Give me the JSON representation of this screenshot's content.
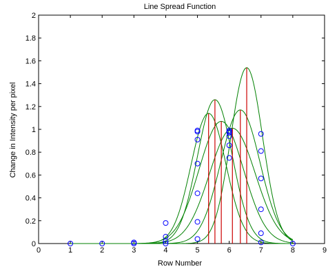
{
  "chart_data": {
    "type": "line",
    "title": "Line Spread Function",
    "xlabel": "Row Number",
    "ylabel": "Change in Intensity per pixel",
    "xlim": [
      0,
      9
    ],
    "ylim": [
      0,
      2
    ],
    "xticks": [
      "0",
      "1",
      "2",
      "3",
      "4",
      "5",
      "6",
      "7",
      "8",
      "9"
    ],
    "yticks": [
      "0",
      "0.2",
      "0.4",
      "0.6",
      "0.8",
      "1",
      "1.2",
      "1.4",
      "1.6",
      "1.8",
      "2"
    ],
    "grid": false,
    "colors": {
      "fit_curves": "#008000",
      "peak_lines": "#cc0000",
      "markers": "#0000ff"
    },
    "fits": [
      {
        "center": 5.35,
        "amplitude": 1.14,
        "sigma": 0.55
      },
      {
        "center": 5.55,
        "amplitude": 1.26,
        "sigma": 0.55
      },
      {
        "center": 5.75,
        "amplitude": 1.07,
        "sigma": 0.7
      },
      {
        "center": 6.1,
        "amplitude": 1.01,
        "sigma": 0.72
      },
      {
        "center": 6.35,
        "amplitude": 1.17,
        "sigma": 0.62
      },
      {
        "center": 6.55,
        "amplitude": 1.54,
        "sigma": 0.5
      }
    ],
    "markers": {
      "x": [
        1,
        2,
        3,
        3,
        4,
        4,
        4,
        4,
        5,
        5,
        5,
        5,
        5,
        5,
        5,
        6,
        6,
        6,
        6,
        6,
        6,
        7,
        7,
        7,
        7,
        7,
        7,
        8
      ],
      "y": [
        0,
        0,
        0,
        0.01,
        0,
        0.02,
        0.06,
        0.18,
        0.04,
        0.19,
        0.44,
        0.7,
        0.91,
        0.98,
        0.99,
        0.75,
        0.86,
        0.94,
        0.97,
        0.98,
        0.99,
        0.01,
        0.09,
        0.3,
        0.57,
        0.81,
        0.96,
        0
      ]
    }
  }
}
